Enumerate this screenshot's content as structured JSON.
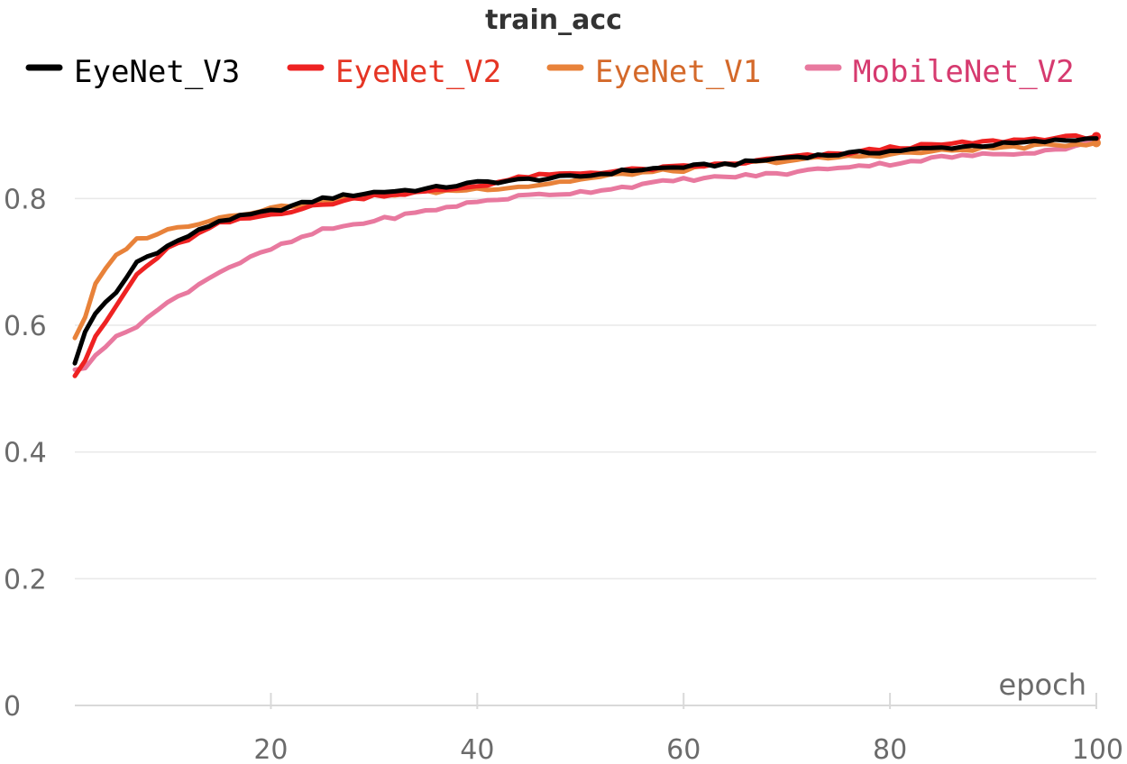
{
  "chart_data": {
    "type": "line",
    "title": "train_acc",
    "xlabel": "epoch",
    "ylabel": "",
    "xlim": [
      1,
      100
    ],
    "ylim": [
      0,
      0.92
    ],
    "xticks": [
      20,
      40,
      60,
      80,
      100
    ],
    "yticks": [
      0,
      0.2,
      0.4,
      0.6,
      0.8
    ],
    "ytick_labels": [
      "0",
      "0.2",
      "0.4",
      "0.6",
      "0.8"
    ],
    "grid": true,
    "legend_position": "top",
    "series": [
      {
        "name": "EyeNet_V3",
        "color": "#000000",
        "legend_text_color": "#000000",
        "anchors": [
          [
            1,
            0.54
          ],
          [
            2,
            0.59
          ],
          [
            3,
            0.62
          ],
          [
            5,
            0.65
          ],
          [
            7,
            0.7
          ],
          [
            10,
            0.725
          ],
          [
            15,
            0.765
          ],
          [
            20,
            0.78
          ],
          [
            25,
            0.8
          ],
          [
            30,
            0.81
          ],
          [
            35,
            0.815
          ],
          [
            40,
            0.825
          ],
          [
            45,
            0.83
          ],
          [
            50,
            0.835
          ],
          [
            55,
            0.845
          ],
          [
            60,
            0.85
          ],
          [
            65,
            0.855
          ],
          [
            70,
            0.865
          ],
          [
            75,
            0.87
          ],
          [
            80,
            0.875
          ],
          [
            85,
            0.88
          ],
          [
            90,
            0.885
          ],
          [
            95,
            0.89
          ],
          [
            100,
            0.895
          ]
        ],
        "end_marker": false
      },
      {
        "name": "EyeNet_V2",
        "color": "#ee2222",
        "legend_text_color": "#e53524",
        "anchors": [
          [
            1,
            0.52
          ],
          [
            2,
            0.545
          ],
          [
            3,
            0.58
          ],
          [
            5,
            0.63
          ],
          [
            7,
            0.68
          ],
          [
            10,
            0.72
          ],
          [
            15,
            0.76
          ],
          [
            20,
            0.775
          ],
          [
            25,
            0.79
          ],
          [
            30,
            0.805
          ],
          [
            35,
            0.81
          ],
          [
            40,
            0.82
          ],
          [
            45,
            0.835
          ],
          [
            50,
            0.84
          ],
          [
            55,
            0.845
          ],
          [
            60,
            0.85
          ],
          [
            65,
            0.855
          ],
          [
            70,
            0.865
          ],
          [
            75,
            0.87
          ],
          [
            80,
            0.88
          ],
          [
            85,
            0.885
          ],
          [
            90,
            0.89
          ],
          [
            95,
            0.895
          ],
          [
            100,
            0.898
          ]
        ],
        "end_marker": true
      },
      {
        "name": "EyeNet_V1",
        "color": "#e8823a",
        "legend_text_color": "#d4692a",
        "anchors": [
          [
            1,
            0.58
          ],
          [
            2,
            0.61
          ],
          [
            3,
            0.665
          ],
          [
            5,
            0.71
          ],
          [
            7,
            0.735
          ],
          [
            10,
            0.75
          ],
          [
            15,
            0.77
          ],
          [
            20,
            0.785
          ],
          [
            25,
            0.795
          ],
          [
            30,
            0.805
          ],
          [
            35,
            0.81
          ],
          [
            40,
            0.815
          ],
          [
            45,
            0.82
          ],
          [
            50,
            0.83
          ],
          [
            55,
            0.84
          ],
          [
            60,
            0.845
          ],
          [
            65,
            0.855
          ],
          [
            70,
            0.86
          ],
          [
            75,
            0.865
          ],
          [
            80,
            0.87
          ],
          [
            85,
            0.875
          ],
          [
            90,
            0.88
          ],
          [
            95,
            0.883
          ],
          [
            100,
            0.888
          ]
        ],
        "end_marker": true
      },
      {
        "name": "MobileNet_V2",
        "color": "#e8799f",
        "legend_text_color": "#d63a6f",
        "anchors": [
          [
            1,
            0.53
          ],
          [
            2,
            0.535
          ],
          [
            3,
            0.555
          ],
          [
            5,
            0.58
          ],
          [
            7,
            0.6
          ],
          [
            10,
            0.635
          ],
          [
            15,
            0.685
          ],
          [
            20,
            0.72
          ],
          [
            25,
            0.75
          ],
          [
            30,
            0.765
          ],
          [
            35,
            0.78
          ],
          [
            40,
            0.795
          ],
          [
            45,
            0.805
          ],
          [
            50,
            0.81
          ],
          [
            55,
            0.82
          ],
          [
            60,
            0.83
          ],
          [
            65,
            0.835
          ],
          [
            70,
            0.84
          ],
          [
            75,
            0.85
          ],
          [
            80,
            0.855
          ],
          [
            85,
            0.865
          ],
          [
            90,
            0.87
          ],
          [
            95,
            0.875
          ],
          [
            100,
            0.888
          ]
        ],
        "end_marker": false
      }
    ]
  }
}
